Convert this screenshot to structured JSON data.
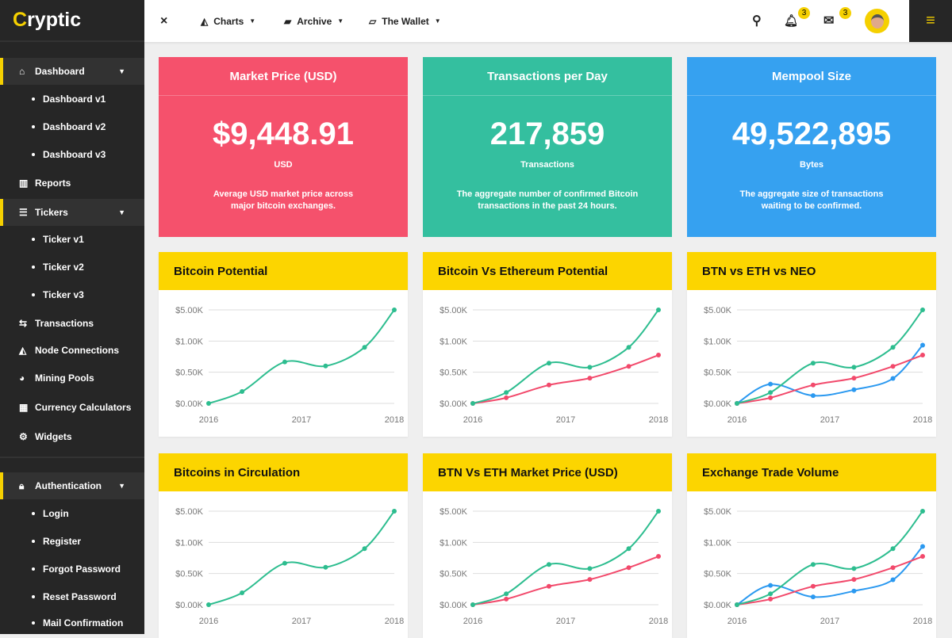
{
  "brand": {
    "name": "ryptic",
    "initial": "C"
  },
  "header": {
    "close": "×",
    "menus": [
      {
        "label": "Charts",
        "icon": "area-chart-icon"
      },
      {
        "label": "Archive",
        "icon": "archive-icon"
      },
      {
        "label": "The Wallet",
        "icon": "folder-open-icon"
      }
    ],
    "notifications": "3",
    "messages": "3"
  },
  "sidebar": {
    "dashboard": "Dashboard",
    "dashboard_items": [
      "Dashboard v1",
      "Dashboard v2",
      "Dashboard v3"
    ],
    "reports": "Reports",
    "tickers": "Tickers",
    "ticker_items": [
      "Ticker v1",
      "Ticker v2",
      "Ticker v3"
    ],
    "transactions": "Transactions",
    "node_connections": "Node Connections",
    "mining_pools": "Mining Pools",
    "currency_calculators": "Currency Calculators",
    "widgets": "Widgets",
    "authentication": "Authentication",
    "auth_items": [
      "Login",
      "Register",
      "Forgot Password",
      "Reset Password",
      "Mail Confirmation"
    ]
  },
  "stats": [
    {
      "title": "Market Price (USD)",
      "value": "$9,448.91",
      "unit": "USD",
      "desc": "Average USD market price across major bitcoin exchanges.",
      "color": "#f5516c"
    },
    {
      "title": "Transactions per Day",
      "value": "217,859",
      "unit": "Transactions",
      "desc": "The aggregate number of confirmed Bitcoin transactions in the past 24 hours.",
      "color": "#34bf9f"
    },
    {
      "title": "Mempool Size",
      "value": "49,522,895",
      "unit": "Bytes",
      "desc": "The aggregate size of transactions waiting to be confirmed.",
      "color": "#36a1f0"
    }
  ],
  "chart_data": [
    {
      "title": "Bitcoin Potential",
      "type": "line",
      "yticks": [
        "$0.00K",
        "$0.50K",
        "$1.00K",
        "$5.00K"
      ],
      "xticks": [
        "2016",
        "2017",
        "2018"
      ],
      "x": [
        2016,
        2016.36,
        2016.82,
        2017.26,
        2017.68,
        2018
      ],
      "series": [
        {
          "name": "green",
          "color": "#2dbd8f",
          "values": [
            0,
            0.38,
            1.33,
            1.2,
            1.8,
            3
          ]
        }
      ]
    },
    {
      "title": "Bitcoin Vs Ethereum Potential",
      "type": "line",
      "yticks": [
        "$0.00K",
        "$0.50K",
        "$1.00K",
        "$5.00K"
      ],
      "xticks": [
        "2016",
        "2017",
        "2018"
      ],
      "x": [
        2016,
        2016.36,
        2016.82,
        2017.26,
        2017.68,
        2018
      ],
      "series": [
        {
          "name": "green",
          "color": "#2dbd8f",
          "values": [
            0,
            0.35,
            1.29,
            1.16,
            1.8,
            3
          ]
        },
        {
          "name": "red",
          "color": "#f2496b",
          "values": [
            0,
            0.18,
            0.59,
            0.81,
            1.19,
            1.55
          ]
        }
      ]
    },
    {
      "title": "BTN vs ETH vs NEO",
      "type": "line",
      "yticks": [
        "$0.00K",
        "$0.50K",
        "$1.00K",
        "$5.00K"
      ],
      "xticks": [
        "2016",
        "2017",
        "2018"
      ],
      "x": [
        2016,
        2016.36,
        2016.82,
        2017.26,
        2017.68,
        2018
      ],
      "series": [
        {
          "name": "green",
          "color": "#2dbd8f",
          "values": [
            0,
            0.35,
            1.29,
            1.16,
            1.8,
            3
          ]
        },
        {
          "name": "red",
          "color": "#f2496b",
          "values": [
            0,
            0.18,
            0.59,
            0.81,
            1.19,
            1.55
          ]
        },
        {
          "name": "blue",
          "color": "#2b99f0",
          "values": [
            0,
            0.62,
            0.25,
            0.44,
            0.8,
            1.87
          ]
        }
      ]
    },
    {
      "title": "Bitcoins in Circulation",
      "type": "line",
      "yticks": [
        "$0.00K",
        "$0.50K",
        "$1.00K",
        "$5.00K"
      ],
      "xticks": [
        "2016",
        "2017",
        "2018"
      ],
      "x": [
        2016,
        2016.36,
        2016.82,
        2017.26,
        2017.68,
        2018
      ],
      "series": [
        {
          "name": "green",
          "color": "#2dbd8f",
          "values": [
            0,
            0.38,
            1.33,
            1.2,
            1.8,
            3
          ]
        }
      ]
    },
    {
      "title": "BTN Vs ETH Market Price (USD)",
      "type": "line",
      "yticks": [
        "$0.00K",
        "$0.50K",
        "$1.00K",
        "$5.00K"
      ],
      "xticks": [
        "2016",
        "2017",
        "2018"
      ],
      "x": [
        2016,
        2016.36,
        2016.82,
        2017.26,
        2017.68,
        2018
      ],
      "series": [
        {
          "name": "green",
          "color": "#2dbd8f",
          "values": [
            0,
            0.35,
            1.29,
            1.16,
            1.8,
            3
          ]
        },
        {
          "name": "red",
          "color": "#f2496b",
          "values": [
            0,
            0.18,
            0.59,
            0.81,
            1.19,
            1.55
          ]
        }
      ]
    },
    {
      "title": "Exchange Trade Volume",
      "type": "line",
      "yticks": [
        "$0.00K",
        "$0.50K",
        "$1.00K",
        "$5.00K"
      ],
      "xticks": [
        "2016",
        "2017",
        "2018"
      ],
      "x": [
        2016,
        2016.36,
        2016.82,
        2017.26,
        2017.68,
        2018
      ],
      "series": [
        {
          "name": "green",
          "color": "#2dbd8f",
          "values": [
            0,
            0.35,
            1.29,
            1.16,
            1.8,
            3
          ]
        },
        {
          "name": "red",
          "color": "#f2496b",
          "values": [
            0,
            0.18,
            0.59,
            0.81,
            1.19,
            1.55
          ]
        },
        {
          "name": "blue",
          "color": "#2b99f0",
          "values": [
            0,
            0.62,
            0.25,
            0.44,
            0.8,
            1.87
          ]
        }
      ]
    }
  ]
}
